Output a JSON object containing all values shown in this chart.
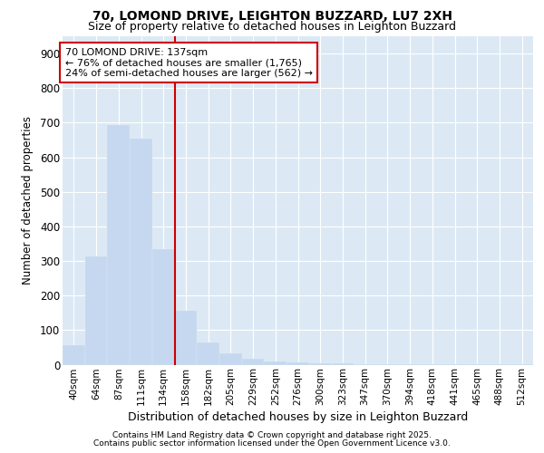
{
  "title1": "70, LOMOND DRIVE, LEIGHTON BUZZARD, LU7 2XH",
  "title2": "Size of property relative to detached houses in Leighton Buzzard",
  "xlabel": "Distribution of detached houses by size in Leighton Buzzard",
  "ylabel": "Number of detached properties",
  "categories": [
    "40sqm",
    "64sqm",
    "87sqm",
    "111sqm",
    "134sqm",
    "158sqm",
    "182sqm",
    "205sqm",
    "229sqm",
    "252sqm",
    "276sqm",
    "300sqm",
    "323sqm",
    "347sqm",
    "370sqm",
    "394sqm",
    "418sqm",
    "441sqm",
    "465sqm",
    "488sqm",
    "512sqm"
  ],
  "values": [
    57,
    312,
    693,
    655,
    335,
    155,
    65,
    33,
    17,
    10,
    6,
    3,
    3,
    2,
    1,
    1,
    1,
    1,
    1,
    1,
    1
  ],
  "bar_color": "#c5d8ef",
  "highlight_bar_index": 4,
  "highlight_color": "#cc0000",
  "annotation_text": "70 LOMOND DRIVE: 137sqm\n← 76% of detached houses are smaller (1,765)\n24% of semi-detached houses are larger (562) →",
  "ylim": [
    0,
    950
  ],
  "yticks": [
    0,
    100,
    200,
    300,
    400,
    500,
    600,
    700,
    800,
    900
  ],
  "bg_color": "#dce9f5",
  "grid_color": "#ffffff",
  "footer1": "Contains HM Land Registry data © Crown copyright and database right 2025.",
  "footer2": "Contains public sector information licensed under the Open Government Licence v3.0."
}
